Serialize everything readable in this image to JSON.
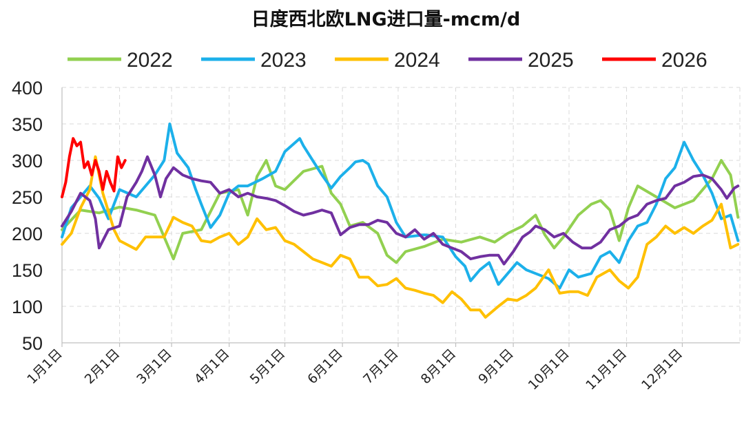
{
  "chart_data": {
    "type": "line",
    "title": "日度西北欧LNG进口量-mcm/d",
    "ylim": [
      50,
      400
    ],
    "yticks": [
      "50",
      "100",
      "150",
      "200",
      "250",
      "300",
      "350",
      "400"
    ],
    "x_categories": [
      "1月1日",
      "2月1日",
      "3月1日",
      "4月1日",
      "5月1日",
      "6月1日",
      "7月1日",
      "8月1日",
      "9月1日",
      "10月1日",
      "11月1日",
      "12月1日"
    ],
    "month_start_days": [
      0,
      31,
      59,
      90,
      120,
      151,
      181,
      212,
      243,
      273,
      304,
      334
    ],
    "grid": true,
    "legend_position": "top",
    "series": [
      {
        "name": "2022",
        "color": "#92d050",
        "points": [
          [
            0,
            205
          ],
          [
            10,
            232
          ],
          [
            20,
            228
          ],
          [
            31,
            236
          ],
          [
            40,
            232
          ],
          [
            50,
            225
          ],
          [
            55,
            195
          ],
          [
            60,
            165
          ],
          [
            65,
            200
          ],
          [
            75,
            205
          ],
          [
            85,
            255
          ],
          [
            95,
            260
          ],
          [
            100,
            225
          ],
          [
            105,
            278
          ],
          [
            110,
            300
          ],
          [
            115,
            265
          ],
          [
            120,
            260
          ],
          [
            130,
            285
          ],
          [
            140,
            292
          ],
          [
            145,
            255
          ],
          [
            150,
            240
          ],
          [
            155,
            210
          ],
          [
            162,
            215
          ],
          [
            170,
            200
          ],
          [
            175,
            170
          ],
          [
            180,
            160
          ],
          [
            185,
            175
          ],
          [
            195,
            182
          ],
          [
            205,
            192
          ],
          [
            215,
            188
          ],
          [
            225,
            195
          ],
          [
            233,
            188
          ],
          [
            240,
            200
          ],
          [
            248,
            210
          ],
          [
            255,
            225
          ],
          [
            260,
            198
          ],
          [
            265,
            180
          ],
          [
            270,
            195
          ],
          [
            278,
            225
          ],
          [
            285,
            240
          ],
          [
            290,
            245
          ],
          [
            295,
            232
          ],
          [
            300,
            190
          ],
          [
            305,
            235
          ],
          [
            310,
            265
          ],
          [
            320,
            250
          ],
          [
            330,
            235
          ],
          [
            340,
            245
          ],
          [
            350,
            275
          ],
          [
            355,
            300
          ],
          [
            360,
            280
          ],
          [
            364,
            222
          ]
        ]
      },
      {
        "name": "2023",
        "color": "#1cb0ea",
        "points": [
          [
            0,
            195
          ],
          [
            5,
            235
          ],
          [
            10,
            250
          ],
          [
            15,
            265
          ],
          [
            20,
            248
          ],
          [
            25,
            220
          ],
          [
            31,
            260
          ],
          [
            40,
            250
          ],
          [
            50,
            280
          ],
          [
            55,
            300
          ],
          [
            58,
            350
          ],
          [
            62,
            310
          ],
          [
            68,
            290
          ],
          [
            72,
            260
          ],
          [
            75,
            240
          ],
          [
            80,
            208
          ],
          [
            85,
            225
          ],
          [
            90,
            255
          ],
          [
            95,
            265
          ],
          [
            100,
            265
          ],
          [
            108,
            275
          ],
          [
            115,
            285
          ],
          [
            120,
            312
          ],
          [
            128,
            330
          ],
          [
            130,
            320
          ],
          [
            135,
            300
          ],
          [
            140,
            280
          ],
          [
            145,
            262
          ],
          [
            150,
            278
          ],
          [
            155,
            290
          ],
          [
            158,
            298
          ],
          [
            162,
            300
          ],
          [
            165,
            295
          ],
          [
            170,
            265
          ],
          [
            175,
            250
          ],
          [
            180,
            215
          ],
          [
            185,
            195
          ],
          [
            195,
            198
          ],
          [
            205,
            195
          ],
          [
            212,
            168
          ],
          [
            217,
            155
          ],
          [
            220,
            135
          ],
          [
            225,
            150
          ],
          [
            230,
            160
          ],
          [
            235,
            130
          ],
          [
            240,
            145
          ],
          [
            245,
            160
          ],
          [
            250,
            150
          ],
          [
            255,
            145
          ],
          [
            262,
            138
          ],
          [
            268,
            125
          ],
          [
            273,
            150
          ],
          [
            278,
            140
          ],
          [
            285,
            145
          ],
          [
            290,
            168
          ],
          [
            295,
            175
          ],
          [
            300,
            160
          ],
          [
            305,
            190
          ],
          [
            310,
            210
          ],
          [
            315,
            215
          ],
          [
            320,
            240
          ],
          [
            325,
            275
          ],
          [
            330,
            290
          ],
          [
            335,
            325
          ],
          [
            340,
            300
          ],
          [
            345,
            280
          ],
          [
            350,
            255
          ],
          [
            355,
            220
          ],
          [
            360,
            225
          ],
          [
            364,
            190
          ]
        ]
      },
      {
        "name": "2024",
        "color": "#ffc000",
        "points": [
          [
            0,
            185
          ],
          [
            5,
            200
          ],
          [
            10,
            235
          ],
          [
            15,
            260
          ],
          [
            18,
            305
          ],
          [
            22,
            255
          ],
          [
            28,
            205
          ],
          [
            31,
            190
          ],
          [
            40,
            178
          ],
          [
            45,
            195
          ],
          [
            50,
            195
          ],
          [
            55,
            195
          ],
          [
            60,
            222
          ],
          [
            65,
            215
          ],
          [
            70,
            210
          ],
          [
            75,
            190
          ],
          [
            80,
            188
          ],
          [
            85,
            195
          ],
          [
            90,
            200
          ],
          [
            95,
            185
          ],
          [
            100,
            195
          ],
          [
            105,
            220
          ],
          [
            110,
            205
          ],
          [
            115,
            208
          ],
          [
            120,
            190
          ],
          [
            125,
            185
          ],
          [
            130,
            175
          ],
          [
            135,
            165
          ],
          [
            140,
            160
          ],
          [
            145,
            155
          ],
          [
            150,
            170
          ],
          [
            155,
            165
          ],
          [
            160,
            140
          ],
          [
            165,
            140
          ],
          [
            170,
            128
          ],
          [
            175,
            130
          ],
          [
            180,
            138
          ],
          [
            185,
            125
          ],
          [
            190,
            122
          ],
          [
            195,
            118
          ],
          [
            200,
            115
          ],
          [
            205,
            105
          ],
          [
            210,
            120
          ],
          [
            215,
            110
          ],
          [
            220,
            95
          ],
          [
            225,
            95
          ],
          [
            228,
            85
          ],
          [
            235,
            100
          ],
          [
            240,
            110
          ],
          [
            245,
            108
          ],
          [
            250,
            115
          ],
          [
            255,
            125
          ],
          [
            262,
            150
          ],
          [
            268,
            118
          ],
          [
            273,
            120
          ],
          [
            278,
            120
          ],
          [
            283,
            115
          ],
          [
            288,
            140
          ],
          [
            295,
            150
          ],
          [
            300,
            135
          ],
          [
            305,
            125
          ],
          [
            310,
            140
          ],
          [
            315,
            185
          ],
          [
            320,
            195
          ],
          [
            325,
            210
          ],
          [
            330,
            200
          ],
          [
            335,
            208
          ],
          [
            340,
            200
          ],
          [
            345,
            210
          ],
          [
            350,
            218
          ],
          [
            355,
            240
          ],
          [
            360,
            180
          ],
          [
            364,
            185
          ]
        ]
      },
      {
        "name": "2025",
        "color": "#7030a0",
        "points": [
          [
            0,
            210
          ],
          [
            5,
            230
          ],
          [
            10,
            255
          ],
          [
            15,
            245
          ],
          [
            18,
            220
          ],
          [
            20,
            180
          ],
          [
            25,
            205
          ],
          [
            31,
            210
          ],
          [
            35,
            250
          ],
          [
            40,
            270
          ],
          [
            43,
            285
          ],
          [
            46,
            305
          ],
          [
            50,
            280
          ],
          [
            53,
            250
          ],
          [
            56,
            275
          ],
          [
            60,
            290
          ],
          [
            65,
            280
          ],
          [
            70,
            275
          ],
          [
            75,
            272
          ],
          [
            80,
            270
          ],
          [
            85,
            255
          ],
          [
            90,
            260
          ],
          [
            95,
            250
          ],
          [
            100,
            255
          ],
          [
            105,
            250
          ],
          [
            110,
            248
          ],
          [
            115,
            245
          ],
          [
            120,
            238
          ],
          [
            125,
            230
          ],
          [
            130,
            225
          ],
          [
            135,
            228
          ],
          [
            140,
            232
          ],
          [
            145,
            228
          ],
          [
            150,
            198
          ],
          [
            155,
            208
          ],
          [
            160,
            212
          ],
          [
            165,
            212
          ],
          [
            170,
            218
          ],
          [
            175,
            215
          ],
          [
            180,
            200
          ],
          [
            185,
            195
          ],
          [
            190,
            205
          ],
          [
            195,
            192
          ],
          [
            200,
            200
          ],
          [
            205,
            185
          ],
          [
            210,
            180
          ],
          [
            215,
            175
          ],
          [
            220,
            165
          ],
          [
            225,
            168
          ],
          [
            230,
            170
          ],
          [
            235,
            170
          ],
          [
            238,
            158
          ],
          [
            243,
            175
          ],
          [
            248,
            195
          ],
          [
            252,
            202
          ],
          [
            255,
            210
          ],
          [
            260,
            205
          ],
          [
            265,
            195
          ],
          [
            270,
            200
          ],
          [
            275,
            188
          ],
          [
            280,
            180
          ],
          [
            285,
            180
          ],
          [
            290,
            188
          ],
          [
            295,
            205
          ],
          [
            300,
            210
          ],
          [
            305,
            220
          ],
          [
            310,
            225
          ],
          [
            315,
            240
          ],
          [
            320,
            245
          ],
          [
            325,
            248
          ],
          [
            330,
            265
          ],
          [
            335,
            270
          ],
          [
            340,
            278
          ],
          [
            345,
            280
          ],
          [
            350,
            275
          ],
          [
            355,
            260
          ],
          [
            358,
            248
          ],
          [
            362,
            262
          ],
          [
            364,
            265
          ]
        ]
      },
      {
        "name": "2026",
        "color": "#ff0000",
        "points": [
          [
            0,
            250
          ],
          [
            2,
            270
          ],
          [
            4,
            305
          ],
          [
            6,
            330
          ],
          [
            8,
            320
          ],
          [
            10,
            325
          ],
          [
            12,
            290
          ],
          [
            14,
            298
          ],
          [
            16,
            280
          ],
          [
            18,
            300
          ],
          [
            20,
            285
          ],
          [
            22,
            260
          ],
          [
            24,
            285
          ],
          [
            26,
            270
          ],
          [
            28,
            258
          ],
          [
            30,
            305
          ],
          [
            32,
            290
          ],
          [
            34,
            300
          ]
        ]
      }
    ]
  }
}
